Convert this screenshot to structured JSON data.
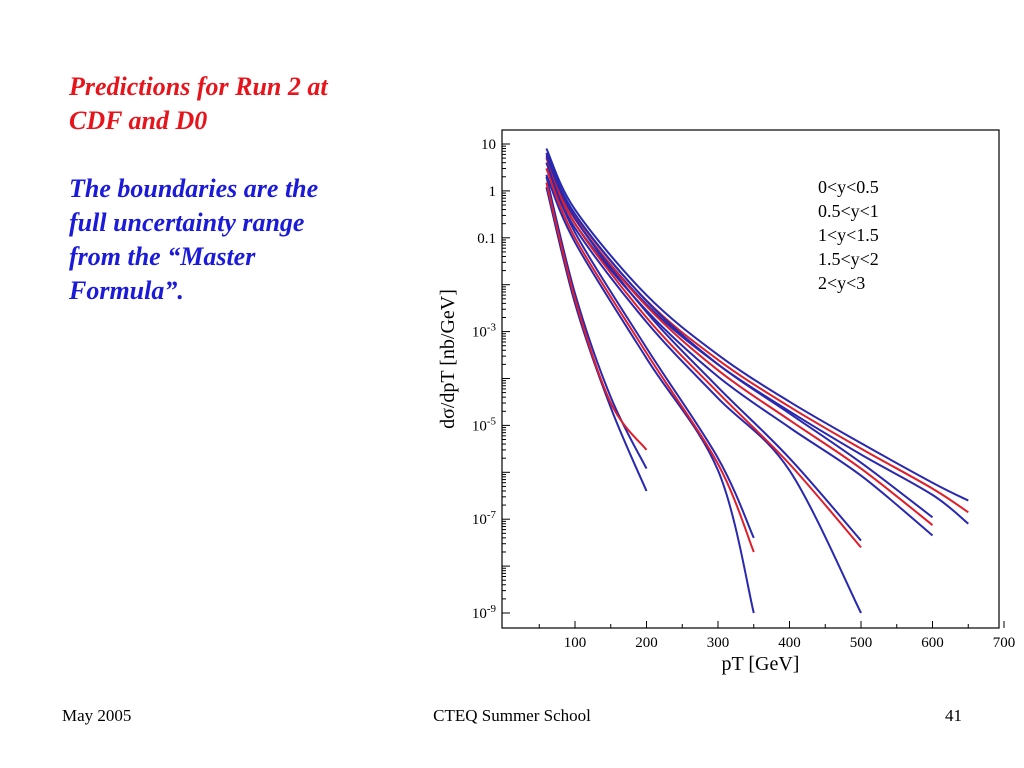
{
  "slide": {
    "title_lines": [
      "Predictions for Run 2 at",
      "CDF and D0"
    ],
    "subtitle_lines": [
      "The boundaries are the",
      "full uncertainty range",
      "from the “Master",
      "Formula”."
    ],
    "colors": {
      "title": "#e8141c",
      "subtitle": "#1a1ad8"
    }
  },
  "footer": {
    "left": "May 2005",
    "center": "CTEQ Summer School",
    "right": "41"
  },
  "chart_data": {
    "type": "line",
    "title": "",
    "xlabel": "pT [GeV]",
    "ylabel": "dσ/dpT [nb/GeV]",
    "xlim": [
      0,
      700
    ],
    "ylim": [
      1e-09,
      30
    ],
    "yscale": "log",
    "x_ticks": [
      100,
      200,
      300,
      400,
      500,
      600,
      700
    ],
    "x_tick_labels": [
      "100",
      "200",
      "300",
      "400",
      "500",
      "600",
      "700"
    ],
    "y_tick_labels": [
      {
        "value": 10,
        "base": "10",
        "exp": ""
      },
      {
        "value": 1,
        "base": "1",
        "exp": ""
      },
      {
        "value": 0.1,
        "base": "0.1",
        "exp": ""
      },
      {
        "value": 0.001,
        "base": "10",
        "exp": "-3"
      },
      {
        "value": 1e-05,
        "base": "10",
        "exp": "-5"
      },
      {
        "value": 1e-07,
        "base": "10",
        "exp": "-7"
      },
      {
        "value": 1e-09,
        "base": "10",
        "exp": "-9"
      }
    ],
    "legend": [
      "0<y<0.5",
      "0.5<y<1",
      "1<y<1.5",
      "1.5<y<2",
      "2<y<3"
    ],
    "legend_position": "top-right",
    "colors": {
      "central": "#e01e2a",
      "boundary": "#2828b0"
    },
    "series": [
      {
        "name": "0<y<0.5",
        "x": [
          60,
          100,
          200,
          300,
          400,
          500,
          600,
          650
        ],
        "central": [
          6.0,
          0.3,
          0.0046,
          0.00025,
          2.5e-05,
          3.2e-06,
          4.5e-07,
          1.4e-07
        ],
        "upper": [
          8.0,
          0.4,
          0.006,
          0.00032,
          3.2e-05,
          4.2e-06,
          6e-07,
          2.5e-07
        ],
        "lower": [
          5.0,
          0.25,
          0.0038,
          0.0002,
          2e-05,
          2.4e-06,
          3.3e-07,
          8e-08
        ]
      },
      {
        "name": "0.5<y<1",
        "x": [
          60,
          100,
          200,
          300,
          400,
          500,
          600
        ],
        "central": [
          5.0,
          0.25,
          0.0035,
          0.00015,
          1.3e-05,
          1.2e-06,
          7.5e-08
        ],
        "upper": [
          6.5,
          0.32,
          0.0045,
          0.0002,
          1.8e-05,
          1.6e-06,
          1.1e-07
        ],
        "lower": [
          4.0,
          0.2,
          0.0028,
          0.00011,
          9e-06,
          8.5e-07,
          4.5e-08
        ]
      },
      {
        "name": "1<y<1.5",
        "x": [
          60,
          100,
          200,
          300,
          400,
          500
        ],
        "central": [
          4.0,
          0.2,
          0.002,
          5e-05,
          1.5e-06,
          2.5e-08
        ],
        "upper": [
          5.5,
          0.26,
          0.0026,
          6.5e-05,
          2e-06,
          3.5e-08
        ],
        "lower": [
          3.0,
          0.16,
          0.0016,
          3.8e-05,
          1.1e-06,
          1e-09
        ]
      },
      {
        "name": "1.5<y<2",
        "x": [
          60,
          100,
          200,
          300,
          350
        ],
        "central": [
          3.0,
          0.1,
          0.00035,
          1.5e-06,
          2e-08
        ],
        "upper": [
          4.0,
          0.13,
          0.00045,
          2e-06,
          4e-08
        ],
        "lower": [
          2.2,
          0.08,
          0.00027,
          1.1e-06,
          1e-09
        ]
      },
      {
        "name": "2<y<3",
        "x": [
          60,
          100,
          150,
          200
        ],
        "central": [
          1.5,
          0.005,
          3e-05,
          3e-06
        ],
        "upper": [
          2.0,
          0.0065,
          4e-05,
          1.2e-06
        ],
        "lower": [
          1.2,
          0.004,
          2.4e-05,
          4e-07
        ]
      }
    ]
  }
}
